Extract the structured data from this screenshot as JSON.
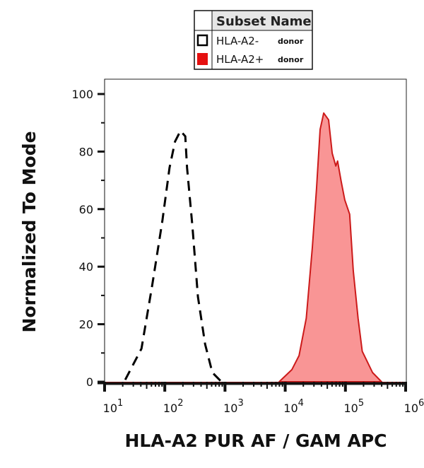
{
  "chart_data": {
    "type": "area",
    "title": "",
    "xlabel": "HLA-A2 PUR AF / GAM APC",
    "ylabel": "Normalized To Mode",
    "x_scale": "log",
    "xlim": [
      10,
      1000000
    ],
    "ylim": [
      0,
      105
    ],
    "x_ticks": [
      {
        "base": "10",
        "exp": "1"
      },
      {
        "base": "10",
        "exp": "2"
      },
      {
        "base": "10",
        "exp": "3"
      },
      {
        "base": "10",
        "exp": "4"
      },
      {
        "base": "10",
        "exp": "5"
      },
      {
        "base": "10",
        "exp": "6"
      }
    ],
    "y_ticks": [
      "0",
      "20",
      "40",
      "60",
      "80",
      "100"
    ],
    "grid": false,
    "legend": {
      "placement": "top-center",
      "header": "Subset Name",
      "entries": [
        {
          "name": "HLA-A2-",
          "suffix": "donor"
        },
        {
          "name": "HLA-A2+",
          "suffix": "donor"
        }
      ]
    },
    "series": [
      {
        "name": "HLA-A2-",
        "style": "dashed outline",
        "color": "#000000",
        "fill": "none",
        "x": [
          22,
          41,
          62,
          91,
          120,
          148,
          182,
          219,
          234,
          288,
          355,
          468,
          617,
          871
        ],
        "y": [
          0.7,
          11.5,
          33.7,
          55.8,
          74.4,
          83.5,
          87.2,
          85.3,
          74.4,
          54,
          29.5,
          13,
          3.2,
          0
        ]
      },
      {
        "name": "HLA-A2+",
        "style": "filled",
        "color": "#cc1a1a",
        "fill": "#f99595",
        "x": [
          7940,
          12900,
          17000,
          22400,
          28200,
          33100,
          38000,
          43600,
          52500,
          60300,
          69200,
          74100,
          85100,
          97700,
          117500,
          135000,
          162000,
          190500,
          282000,
          398000
        ],
        "y": [
          0,
          4.2,
          9.1,
          22.1,
          46.7,
          67.1,
          87.7,
          93.4,
          91,
          79.4,
          75,
          76.7,
          69.6,
          63.2,
          58.2,
          38.6,
          22.1,
          10.6,
          3.2,
          0
        ]
      }
    ]
  }
}
